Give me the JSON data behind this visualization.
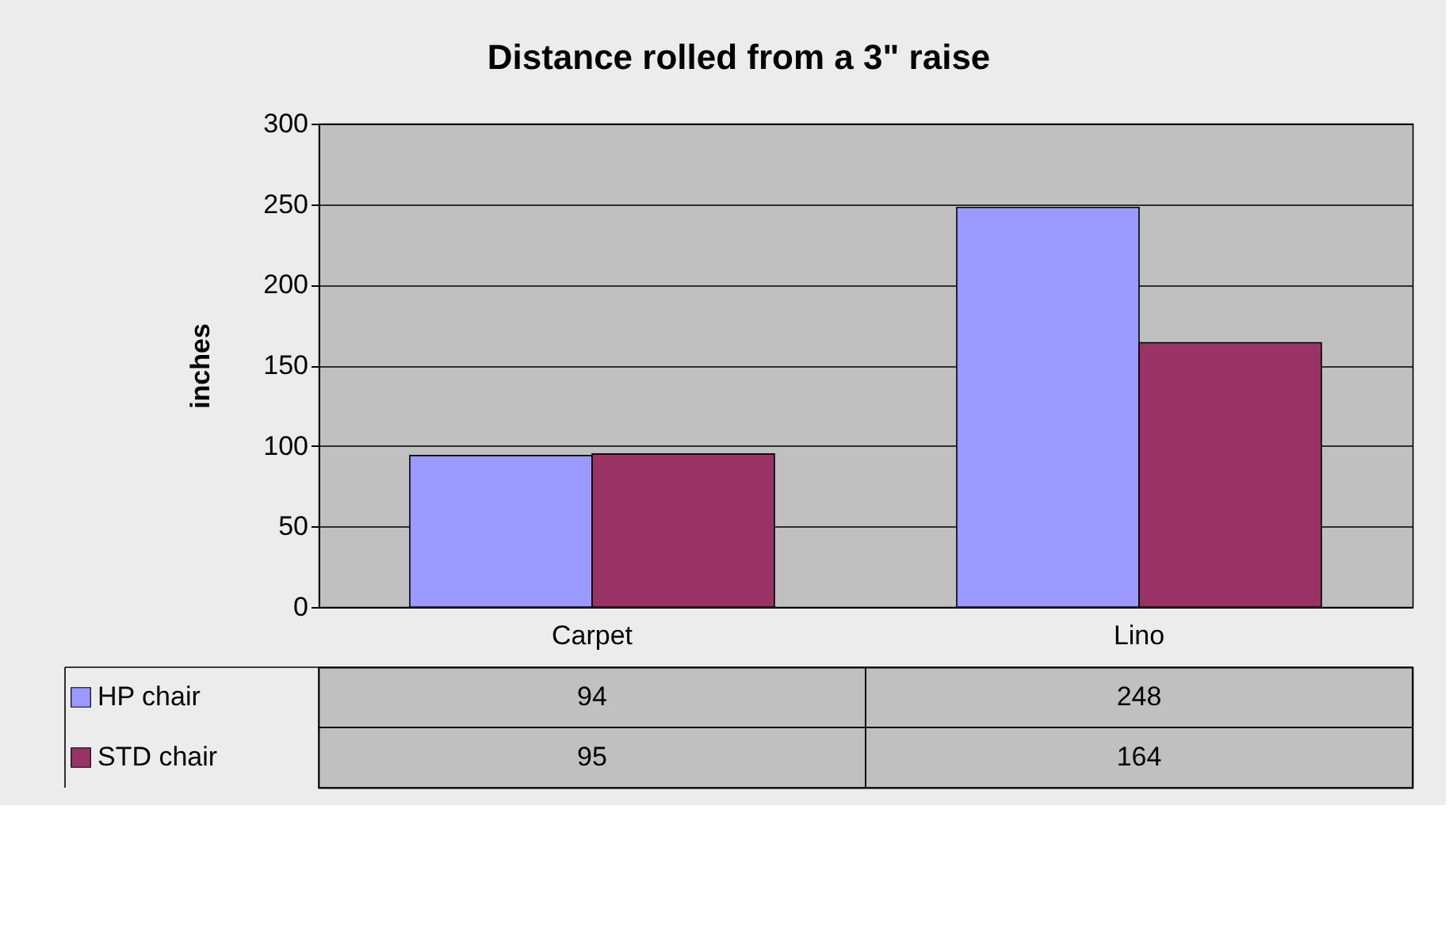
{
  "chart_data": {
    "type": "bar",
    "title": "Distance rolled from a 3\" raise",
    "ylabel": "inches",
    "categories": [
      "Carpet",
      "Lino"
    ],
    "series": [
      {
        "name": "HP chair",
        "color": "#9999ff",
        "values": [
          94,
          248
        ]
      },
      {
        "name": "STD chair",
        "color": "#993366",
        "values": [
          95,
          164
        ]
      }
    ],
    "ylim": [
      0,
      300
    ],
    "yticks": [
      0,
      50,
      100,
      150,
      200,
      250,
      300
    ],
    "grid": "y",
    "legend": "bottom",
    "data_labels": true
  }
}
